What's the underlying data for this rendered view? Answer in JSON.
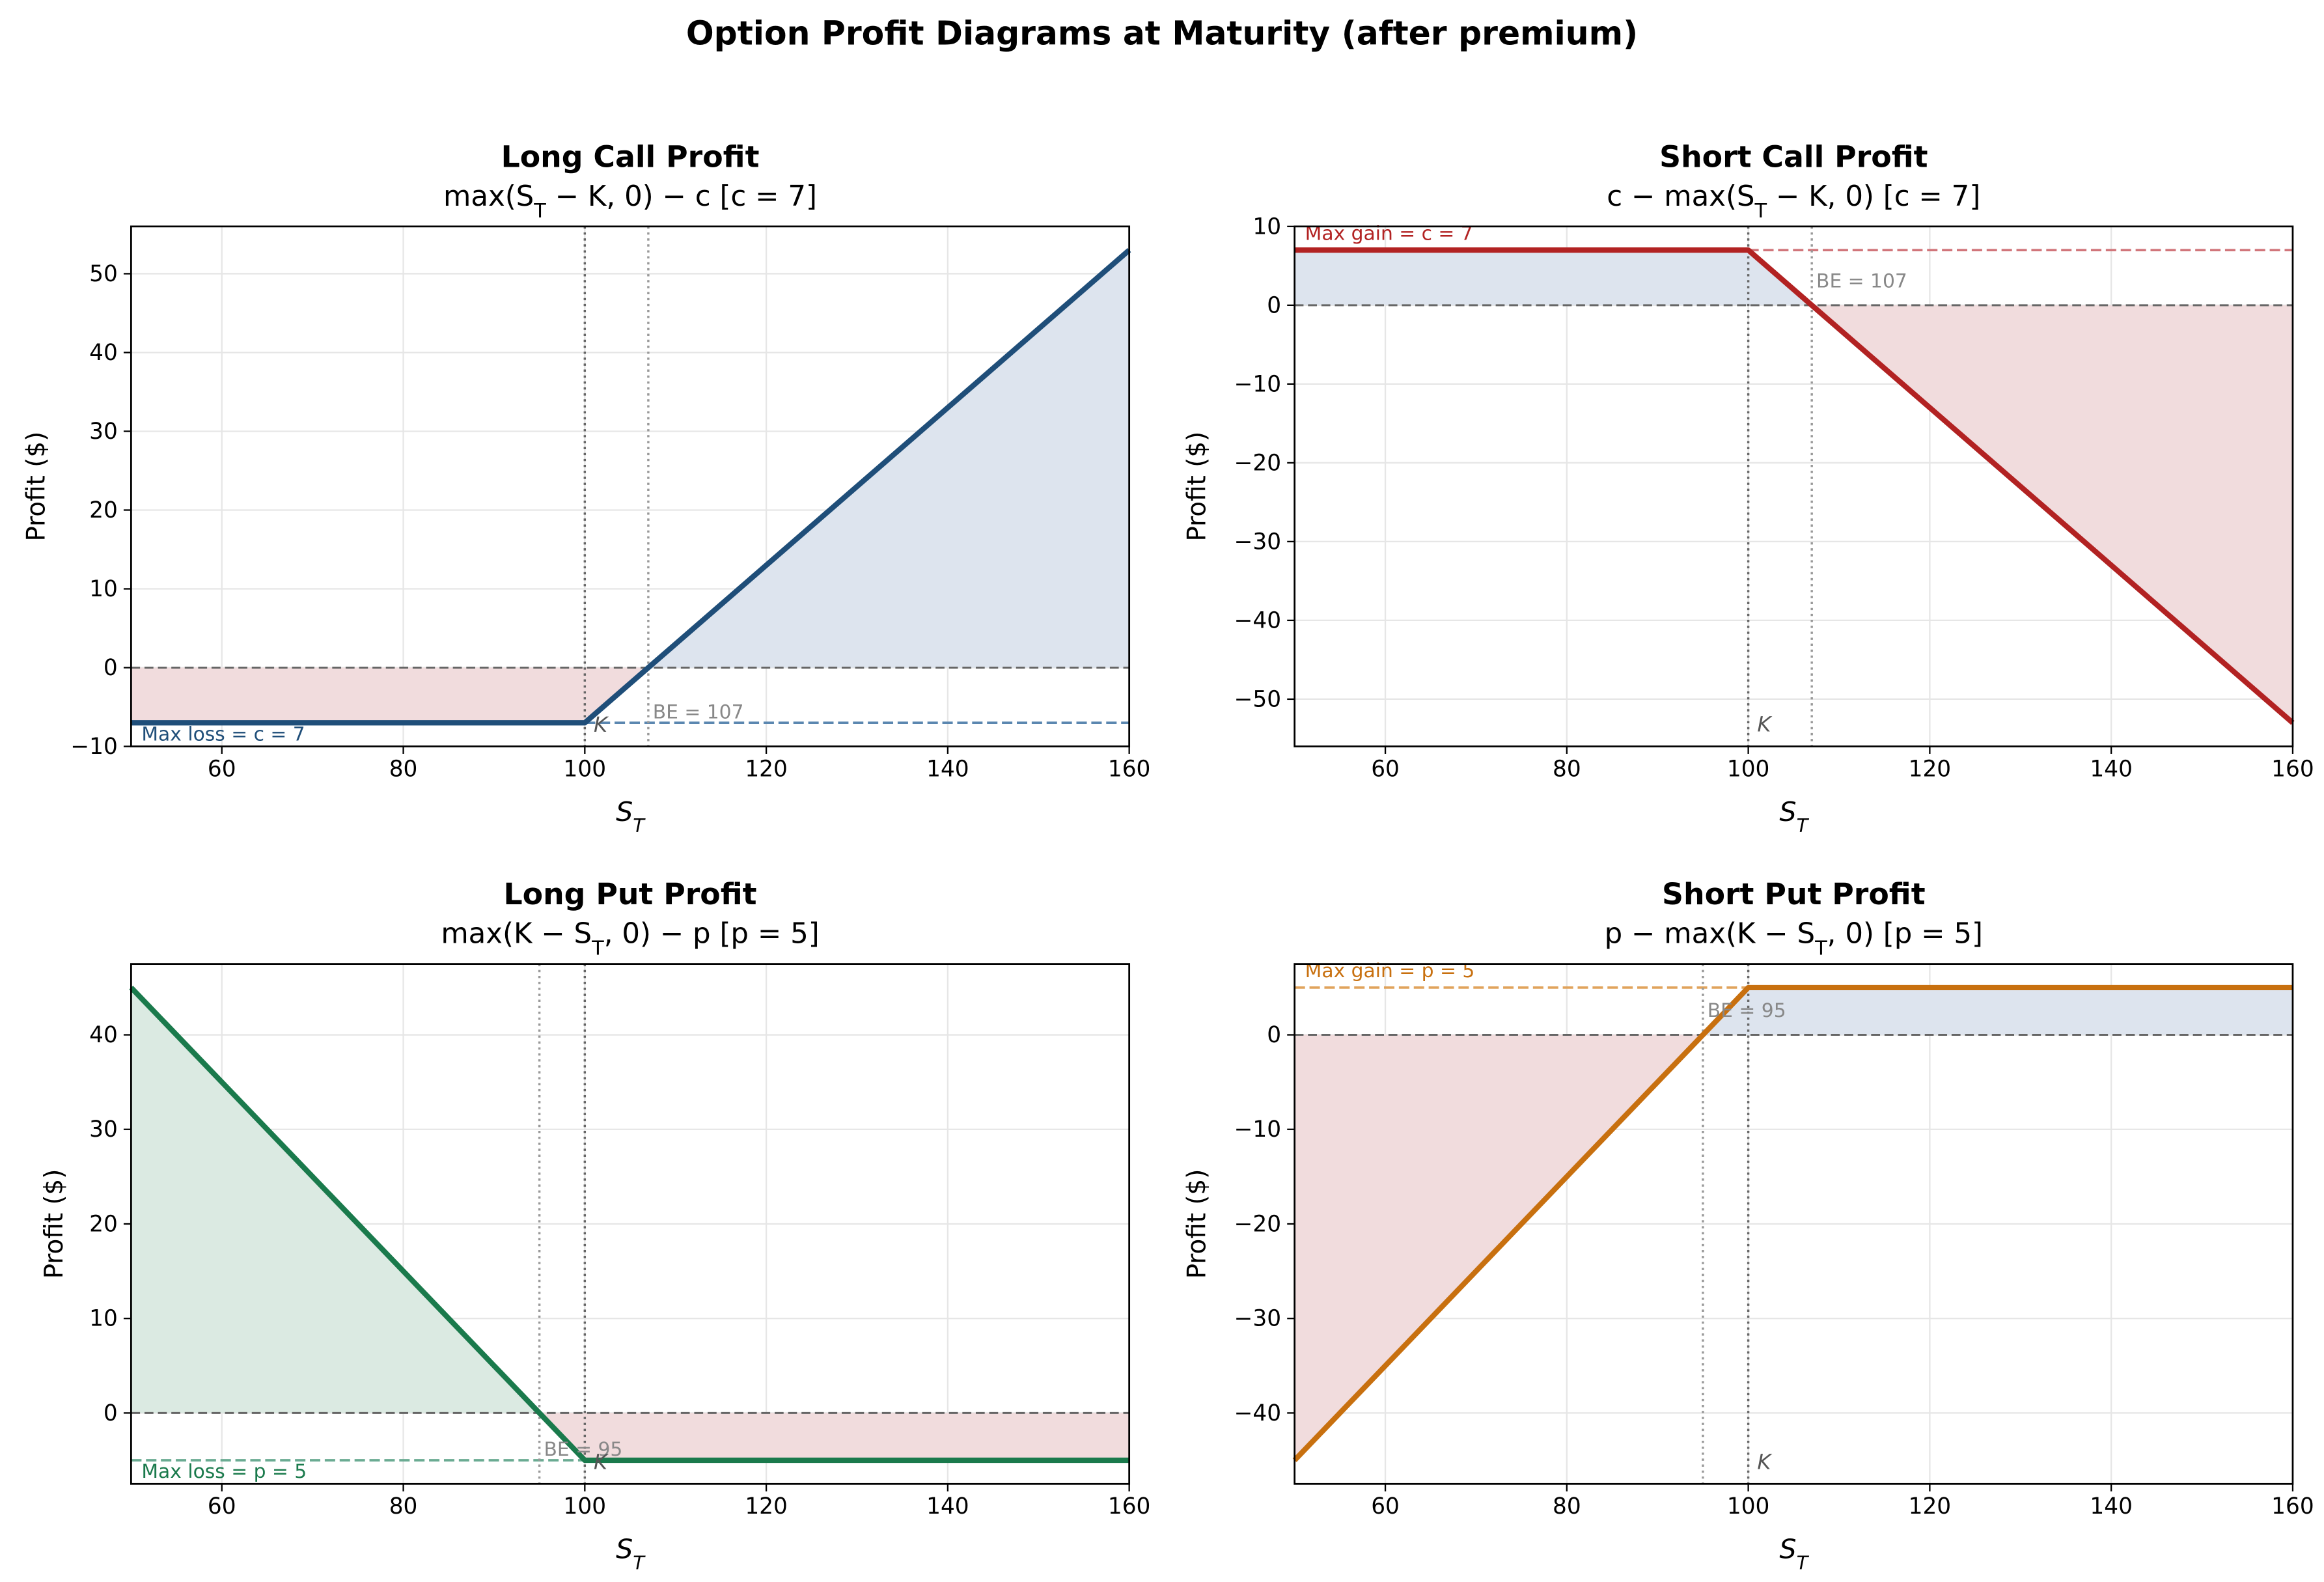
{
  "title": "Option Profit Diagrams at Maturity (after premium)",
  "chart_data": [
    {
      "type": "line",
      "title": "Long Call Profit",
      "subtitle": "max(S_T − K, 0) − c  [c = 7]",
      "xlabel": "S_T",
      "ylabel": "Profit ($)",
      "x": [
        50,
        100,
        160
      ],
      "values": [
        -7,
        -7,
        53
      ],
      "color": "#1f4e79",
      "fill_positive": "#dde4ee",
      "fill_negative": "#f1dcdd",
      "xlim": [
        50,
        160
      ],
      "ylim": [
        -10,
        56
      ],
      "xticks": [
        60,
        80,
        100,
        120,
        140,
        160
      ],
      "yticks": [
        {
          "value": -10,
          "label": "−10"
        },
        0,
        10,
        20,
        30,
        40,
        50
      ],
      "grid": true,
      "baseline": 0,
      "strike": 100,
      "breakeven": 107,
      "premium_line": {
        "value": -7,
        "x": [
          100,
          160
        ],
        "color": "#5b87b0"
      },
      "max_text": "Max loss = c = 7",
      "be_text": "BE = 107",
      "k_text": "K"
    },
    {
      "type": "line",
      "title": "Short Call Profit",
      "subtitle": "c − max(S_T − K, 0)  [c = 7]",
      "xlabel": "S_T",
      "ylabel": "Profit ($)",
      "x": [
        50,
        100,
        160
      ],
      "values": [
        7,
        7,
        -53
      ],
      "color": "#b22222",
      "fill_positive": "#dde4ee",
      "fill_negative": "#f1dcdd",
      "xlim": [
        50,
        160
      ],
      "ylim": [
        -56,
        10
      ],
      "xticks": [
        60,
        80,
        100,
        120,
        140,
        160
      ],
      "yticks": [
        {
          "value": -50,
          "label": "−50"
        },
        {
          "value": -40,
          "label": "−40"
        },
        {
          "value": -30,
          "label": "−30"
        },
        {
          "value": -20,
          "label": "−20"
        },
        {
          "value": -10,
          "label": "−10"
        },
        0,
        10
      ],
      "grid": true,
      "baseline": 0,
      "strike": 100,
      "breakeven": 107,
      "premium_line": {
        "value": 7,
        "x": [
          100,
          160
        ],
        "color": "#d1757a"
      },
      "max_text": "Max gain = c = 7",
      "be_text": "BE = 107",
      "k_text": "K"
    },
    {
      "type": "line",
      "title": "Long Put Profit",
      "subtitle": "max(K − S_T, 0) − p  [p = 5]",
      "xlabel": "S_T",
      "ylabel": "Profit ($)",
      "x": [
        50,
        100,
        160
      ],
      "values": [
        45,
        -5,
        -5
      ],
      "color": "#1a7a4c",
      "fill_positive": "#dbeae2",
      "fill_negative": "#f1dcdd",
      "xlim": [
        50,
        160
      ],
      "ylim": [
        -7.5,
        47.5
      ],
      "xticks": [
        60,
        80,
        100,
        120,
        140,
        160
      ],
      "yticks": [
        0,
        10,
        20,
        30,
        40
      ],
      "grid": true,
      "baseline": 0,
      "strike": 100,
      "breakeven": 95,
      "premium_line": {
        "value": -5,
        "x": [
          50,
          100
        ],
        "color": "#6aab92"
      },
      "max_text": "Max loss = p = 5",
      "be_text": "BE = 95",
      "k_text": "K"
    },
    {
      "type": "line",
      "title": "Short Put Profit",
      "subtitle": "p − max(K − S_T, 0)  [p = 5]",
      "xlabel": "S_T",
      "ylabel": "Profit ($)",
      "x": [
        50,
        100,
        160
      ],
      "values": [
        -45,
        5,
        5
      ],
      "color": "#c8700f",
      "fill_positive": "#dde4ee",
      "fill_negative": "#f1dcdd",
      "xlim": [
        50,
        160
      ],
      "ylim": [
        -47.5,
        7.5
      ],
      "xticks": [
        60,
        80,
        100,
        120,
        140,
        160
      ],
      "yticks": [
        {
          "value": -40,
          "label": "−40"
        },
        {
          "value": -30,
          "label": "−30"
        },
        {
          "value": -20,
          "label": "−20"
        },
        {
          "value": -10,
          "label": "−10"
        },
        0
      ],
      "grid": true,
      "baseline": 0,
      "strike": 100,
      "breakeven": 95,
      "premium_line": {
        "value": 5,
        "x": [
          50,
          100
        ],
        "color": "#e0a35c"
      },
      "max_text": "Max gain = p = 5",
      "be_text": "BE = 95",
      "k_text": "K"
    }
  ]
}
